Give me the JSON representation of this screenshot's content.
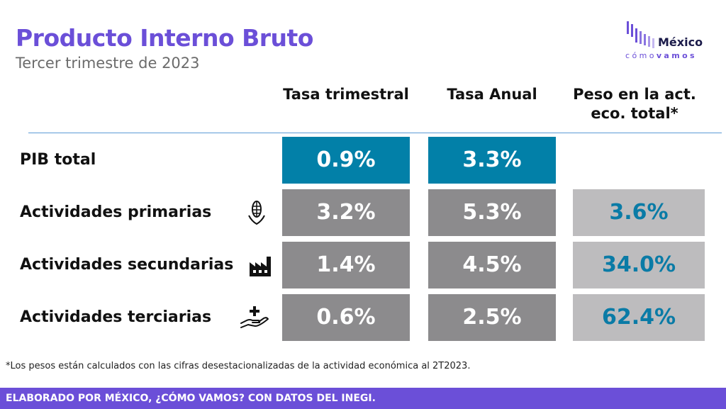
{
  "header": {
    "title": "Producto Interno Bruto",
    "subtitle": "Tercer trimestre de 2023"
  },
  "logo": {
    "name": "México",
    "tagline_a": "cómo",
    "tagline_b": "vamos",
    "color": "#6b4fd8"
  },
  "columns": [
    {
      "label": "Tasa trimestral"
    },
    {
      "label": "Tasa Anual"
    },
    {
      "label": "Peso en la act. eco. total*"
    }
  ],
  "rows": [
    {
      "label": "PIB total",
      "icon": "",
      "trimestral": "0.9%",
      "anual": "3.3%",
      "peso": ""
    },
    {
      "label": "Actividades primarias",
      "icon": "corn-icon",
      "trimestral": "3.2%",
      "anual": "5.3%",
      "peso": "3.6%"
    },
    {
      "label": "Actividades secundarias",
      "icon": "factory-icon",
      "trimestral": "1.4%",
      "anual": "4.5%",
      "peso": "34.0%"
    },
    {
      "label": "Actividades terciarias",
      "icon": "hand-plus-icon",
      "trimestral": "0.6%",
      "anual": "2.5%",
      "peso": "62.4%"
    }
  ],
  "colors": {
    "accent": "#6b4fd8",
    "pib_cell": "#0280a8",
    "rate_cell": "#8c8b8d",
    "weight_cell": "#bdbcbe",
    "weight_text": "#0a7ba6"
  },
  "footnote": "*Los pesos están calculados con las cifras desestacionalizadas de la actividad económica al 2T2023.",
  "footer": "ELABORADO POR MÉXICO, ¿CÓMO VAMOS? CON DATOS DEL INEGI."
}
